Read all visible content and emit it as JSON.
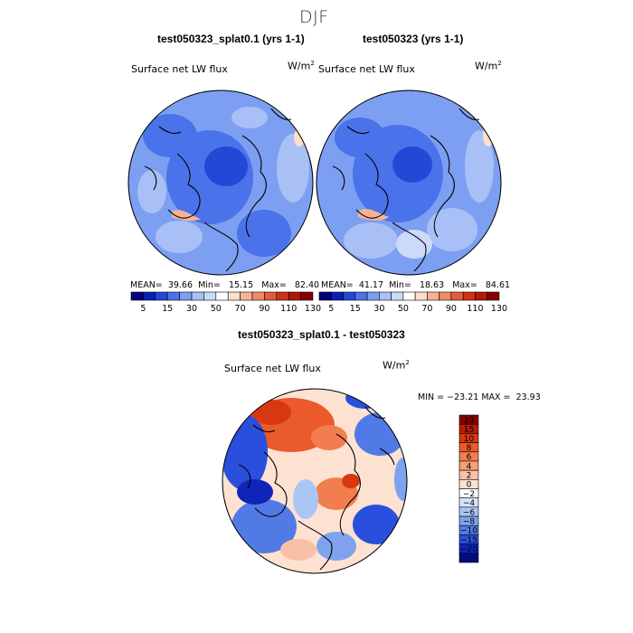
{
  "figure": {
    "title": "DJF"
  },
  "chart_data": [
    {
      "type": "heatmap",
      "projection": "north-polar-stereographic",
      "title": "test050323_splat0.1 (yrs 1-1)",
      "variable": "Surface net LW flux",
      "units_base": "W/m",
      "units_exp": "2",
      "stats": {
        "mean_label": "MEAN=",
        "mean": "39.66",
        "min_label": "Min=",
        "min": "15.15",
        "max_label": "Max=",
        "max": "82.40"
      },
      "colorbar": {
        "levels": [
          "5",
          "15",
          "30",
          "50",
          "70",
          "90",
          "110",
          "130"
        ],
        "colors": [
          "#00007a",
          "#0a1fb4",
          "#2448d6",
          "#4a72ea",
          "#7d9ff2",
          "#a8c0f6",
          "#ccdaf9",
          "#ffffff",
          "#fde0cc",
          "#f7b295",
          "#f08a68",
          "#e55c3d",
          "#cf3218",
          "#b01808",
          "#870000"
        ]
      }
    },
    {
      "type": "heatmap",
      "projection": "north-polar-stereographic",
      "title": "test050323 (yrs 1-1)",
      "variable": "Surface net LW flux",
      "units_base": "W/m",
      "units_exp": "2",
      "stats": {
        "mean_label": "MEAN=",
        "mean": "41.17",
        "min_label": "Min=",
        "min": "18.63",
        "max_label": "Max=",
        "max": "84.61"
      },
      "colorbar": {
        "levels": [
          "5",
          "15",
          "30",
          "50",
          "70",
          "90",
          "110",
          "130"
        ],
        "colors": [
          "#00007a",
          "#0a1fb4",
          "#2448d6",
          "#4a72ea",
          "#7d9ff2",
          "#a8c0f6",
          "#ccdaf9",
          "#ffffff",
          "#fde0cc",
          "#f7b295",
          "#f08a68",
          "#e55c3d",
          "#cf3218",
          "#b01808",
          "#870000"
        ]
      }
    },
    {
      "type": "heatmap",
      "projection": "north-polar-stereographic",
      "title": "test050323_splat0.1 - test050323",
      "variable": "Surface net LW flux",
      "units_base": "W/m",
      "units_exp": "2",
      "stats": {
        "min_label": "MIN =",
        "min": "−23.21",
        "max_label": "MAX =",
        "max": "23.93"
      },
      "colorbar": {
        "orientation": "vertical",
        "levels": [
          "20",
          "15",
          "10",
          "8",
          "6",
          "4",
          "2",
          "0",
          "−2",
          "−4",
          "−6",
          "−8",
          "−10",
          "−15",
          "−20"
        ],
        "colors": [
          "#8a0000",
          "#b81a08",
          "#d8380f",
          "#eb5a2a",
          "#f27d4f",
          "#f69e78",
          "#fac0a5",
          "#fde2d2",
          "#ffffff",
          "#d5e4fb",
          "#aac6f5",
          "#7fa2ee",
          "#527ae6",
          "#2a4fdc",
          "#0f24b8",
          "#020c7c"
        ]
      }
    }
  ]
}
